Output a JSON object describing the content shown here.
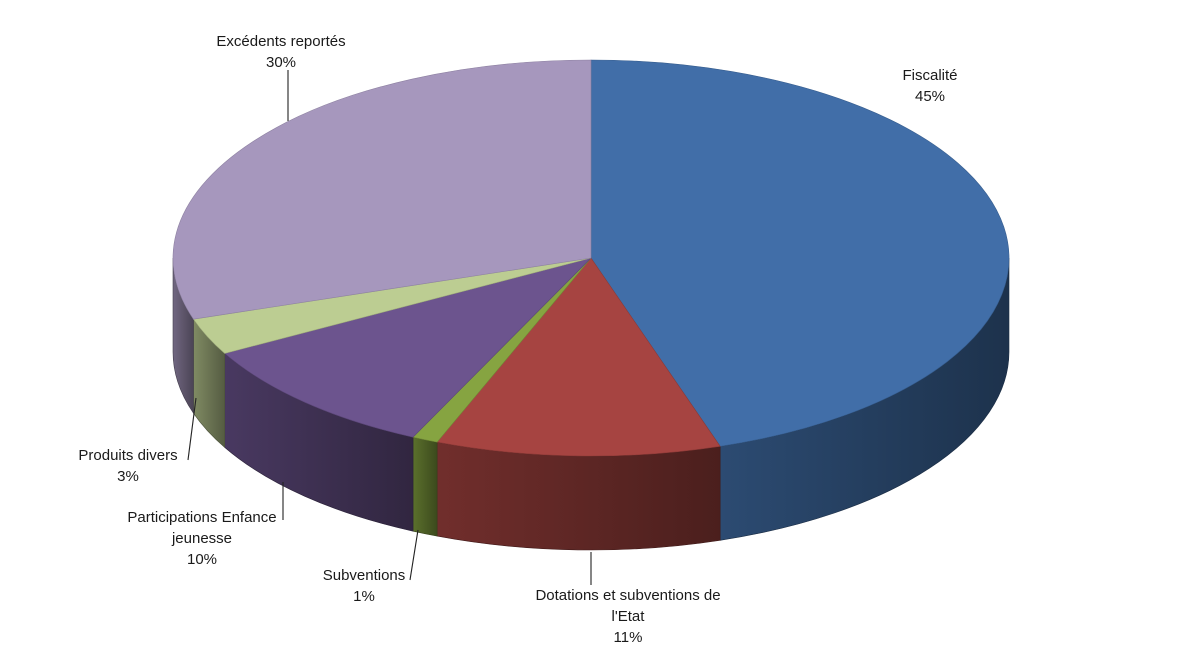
{
  "chart_data": {
    "type": "pie",
    "style": "3d-exploded-free",
    "title": "",
    "categories": [
      "Fiscalité",
      "Dotations et subventions de l'Etat",
      "Subventions",
      "Participations Enfance jeunesse",
      "Produits divers",
      "Excédents reportés"
    ],
    "values": [
      45,
      11,
      1,
      10,
      3,
      30
    ],
    "labels": [
      {
        "lines": [
          "Fiscalité"
        ],
        "pct": "45%"
      },
      {
        "lines": [
          "Dotations et subventions de",
          "l'Etat"
        ],
        "pct": "11%"
      },
      {
        "lines": [
          "Subventions"
        ],
        "pct": "1%"
      },
      {
        "lines": [
          "Participations Enfance",
          "jeunesse"
        ],
        "pct": "10%"
      },
      {
        "lines": [
          "Produits divers"
        ],
        "pct": "3%"
      },
      {
        "lines": [
          "Excédents reportés"
        ],
        "pct": "30%"
      }
    ],
    "colors": [
      "#416ea8",
      "#a64441",
      "#86a441",
      "#6c548e",
      "#bccd92",
      "#a697bd"
    ]
  }
}
